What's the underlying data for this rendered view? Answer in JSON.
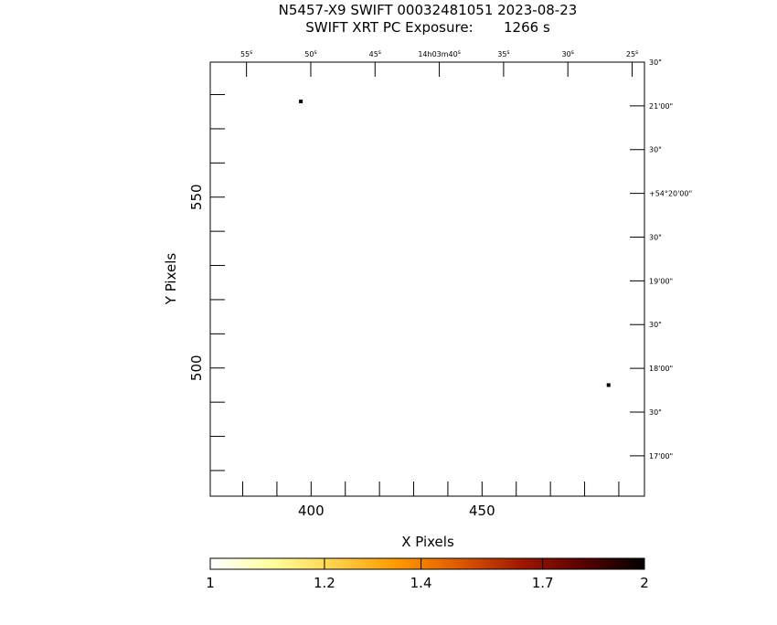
{
  "chart_data": {
    "type": "scatter",
    "title_line1": "N5457-X9 SWIFT 00032481051 2023-08-23",
    "title_line2": "SWIFT XRT PC Exposure:       1266 s",
    "xlabel": "X Pixels",
    "ylabel": "Y Pixels",
    "xlim": [
      370.5,
      497.5
    ],
    "ylim": [
      462.5,
      589.5
    ],
    "x_ticks": [
      400,
      450
    ],
    "y_ticks": [
      500,
      550
    ],
    "x_minor": [
      380,
      390,
      400,
      410,
      420,
      430,
      440,
      450,
      460,
      470,
      480,
      490
    ],
    "y_minor": [
      470,
      480,
      490,
      500,
      510,
      520,
      530,
      540,
      550,
      560,
      570,
      580
    ],
    "ra_ticks": [
      {
        "label": "55",
        "unit": "s",
        "x": 381.1
      },
      {
        "label": "50",
        "unit": "s",
        "x": 399.9
      },
      {
        "label": "45",
        "unit": "s",
        "x": 418.7
      },
      {
        "label": "14h03m40",
        "unit": "s",
        "x": 437.5
      },
      {
        "label": "35",
        "unit": "s",
        "x": 456.3
      },
      {
        "label": "30",
        "unit": "s",
        "x": 475.1
      },
      {
        "label": "25",
        "unit": "s",
        "x": 493.9
      }
    ],
    "dec_ticks": [
      {
        "label": "30\"",
        "y": 589.5
      },
      {
        "label": "21'00\"",
        "y": 576.7
      },
      {
        "label": "30\"",
        "y": 563.9
      },
      {
        "label": "+54°20'00\"",
        "y": 551.1
      },
      {
        "label": "30\"",
        "y": 538.3
      },
      {
        "label": "19'00\"",
        "y": 525.5
      },
      {
        "label": "30\"",
        "y": 512.7
      },
      {
        "label": "18'00\"",
        "y": 499.9
      },
      {
        "label": "30\"",
        "y": 487.1
      },
      {
        "label": "17'00\"",
        "y": 474.3
      }
    ],
    "points": [
      {
        "x": 397,
        "y": 578,
        "value": 1
      },
      {
        "x": 487,
        "y": 495,
        "value": 1
      }
    ],
    "colorbar": {
      "ticks": [
        {
          "label": "1",
          "value": 1.0
        },
        {
          "label": "1.2",
          "value": 1.2
        },
        {
          "label": "1.4",
          "value": 1.4
        },
        {
          "label": "1.7",
          "value": 1.7
        },
        {
          "label": "2",
          "value": 2.0
        }
      ],
      "range": [
        1,
        2
      ],
      "colors": [
        "#ffffff",
        "#ffffa0",
        "#ffd24a",
        "#ff9a00",
        "#e05a00",
        "#a01800",
        "#5a0000",
        "#000000"
      ]
    }
  }
}
